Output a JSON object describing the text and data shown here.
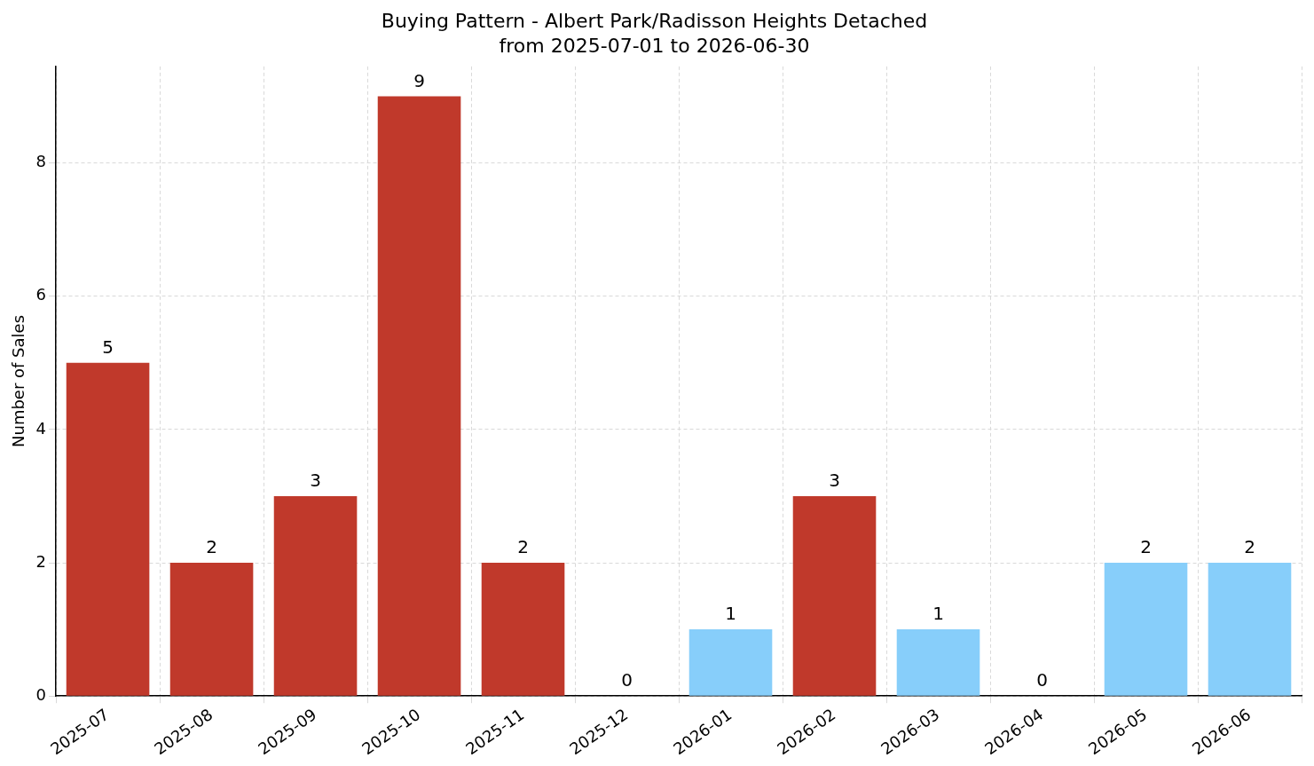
{
  "chart_data": {
    "type": "bar",
    "title": "Buying Pattern - Albert Park/Radisson Heights Detached",
    "subtitle": "from 2025-07-01 to 2026-06-30",
    "ylabel": "Number of Sales",
    "categories": [
      "2025-07",
      "2025-08",
      "2025-09",
      "2025-10",
      "2025-11",
      "2025-12",
      "2026-01",
      "2026-02",
      "2026-03",
      "2026-04",
      "2026-05",
      "2026-06"
    ],
    "values": [
      5,
      2,
      3,
      9,
      2,
      0,
      1,
      3,
      1,
      0,
      2,
      2
    ],
    "colors": [
      "#c0392b",
      "#c0392b",
      "#c0392b",
      "#c0392b",
      "#c0392b",
      "#c0392b",
      "#87cefa",
      "#c0392b",
      "#87cefa",
      "#87cefa",
      "#87cefa",
      "#87cefa"
    ],
    "ylim": [
      0,
      9.45
    ],
    "yticks": [
      0,
      2,
      4,
      6,
      8
    ],
    "grid": true,
    "data_labels": true,
    "legend": false
  }
}
